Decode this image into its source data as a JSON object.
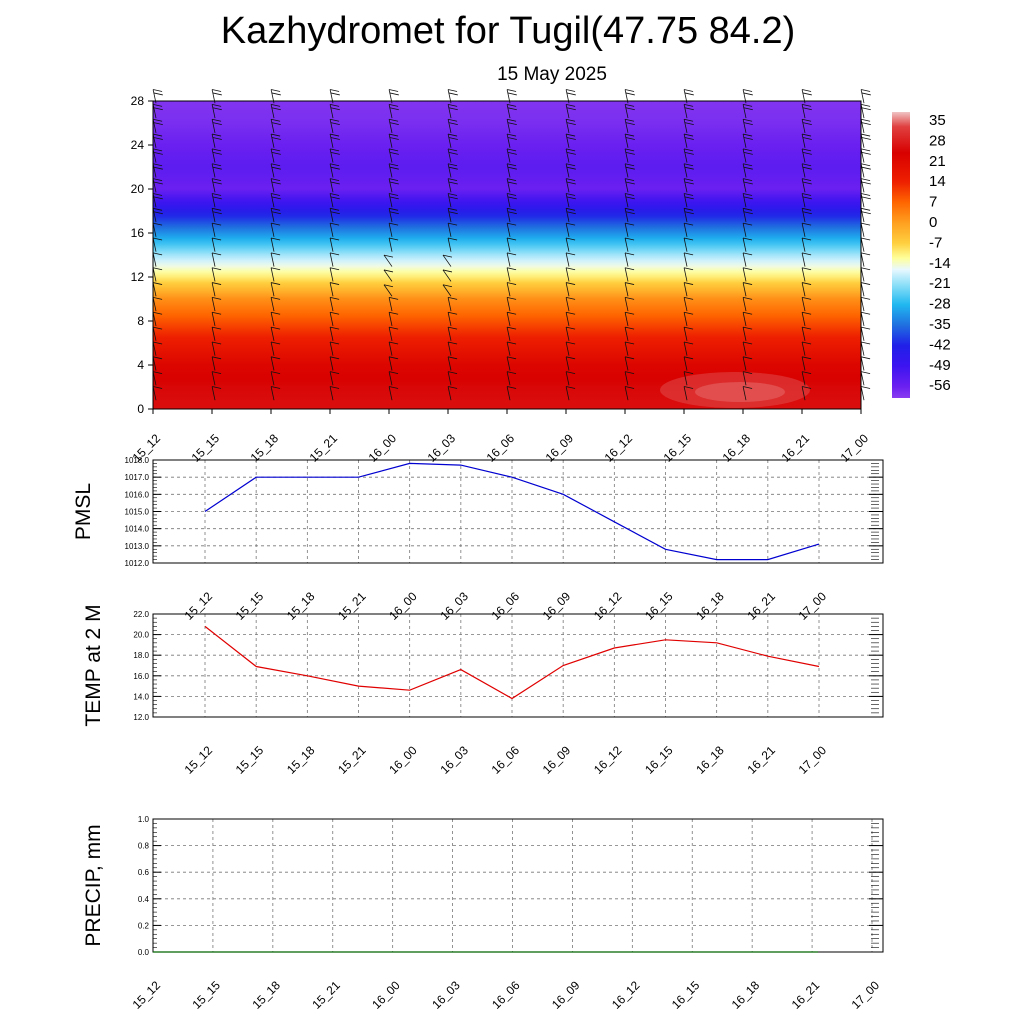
{
  "title": "Kazhydromet for Tugil(47.75 84.2)",
  "subtitle": "15 May 2025",
  "time_labels": [
    "15_12",
    "15_15",
    "15_18",
    "15_21",
    "16_00",
    "16_03",
    "16_06",
    "16_09",
    "16_12",
    "16_15",
    "16_18",
    "16_21",
    "17_00"
  ],
  "chart_data": [
    {
      "type": "heatmap",
      "name": "upper-air temperature cross-section with wind barbs",
      "x": [
        "15_12",
        "15_15",
        "15_18",
        "15_21",
        "16_00",
        "16_03",
        "16_06",
        "16_09",
        "16_12",
        "16_15",
        "16_18",
        "16_21",
        "17_00"
      ],
      "ylim": [
        0,
        28
      ],
      "yticks": [
        0,
        4,
        8,
        12,
        16,
        20,
        24,
        28
      ],
      "colorbar": {
        "labels": [
          35,
          28,
          21,
          14,
          7,
          0,
          -7,
          -14,
          -21,
          -28,
          -35,
          -42,
          -49,
          -56
        ],
        "range": [
          -60,
          38
        ],
        "colors": [
          {
            "v": 38,
            "c": "#f0c4c4"
          },
          {
            "v": 33,
            "c": "#e04040"
          },
          {
            "v": 24,
            "c": "#d80000"
          },
          {
            "v": 14,
            "c": "#ee2000"
          },
          {
            "v": 7,
            "c": "#ff6600"
          },
          {
            "v": 0,
            "c": "#ffa020"
          },
          {
            "v": -7,
            "c": "#ffd040"
          },
          {
            "v": -12,
            "c": "#ffff99"
          },
          {
            "v": -16,
            "c": "#e8f8ff"
          },
          {
            "v": -21,
            "c": "#90e0f8"
          },
          {
            "v": -28,
            "c": "#20b8f0"
          },
          {
            "v": -35,
            "c": "#2070e0"
          },
          {
            "v": -42,
            "c": "#2020e8"
          },
          {
            "v": -49,
            "c": "#3c14f0"
          },
          {
            "v": -56,
            "c": "#6a20f0"
          },
          {
            "v": -60,
            "c": "#8a3cf0"
          }
        ]
      },
      "temperature_profile": [
        {
          "h": 0,
          "t": 26
        },
        {
          "h": 2,
          "t": 25
        },
        {
          "h": 4,
          "t": 22
        },
        {
          "h": 6,
          "t": 16
        },
        {
          "h": 8,
          "t": 9
        },
        {
          "h": 10,
          "t": 2
        },
        {
          "h": 11,
          "t": -4
        },
        {
          "h": 12,
          "t": -10
        },
        {
          "h": 13,
          "t": -15
        },
        {
          "h": 14,
          "t": -20
        },
        {
          "h": 15,
          "t": -26
        },
        {
          "h": 16,
          "t": -32
        },
        {
          "h": 17,
          "t": -38
        },
        {
          "h": 18,
          "t": -44
        },
        {
          "h": 19,
          "t": -50
        },
        {
          "h": 20,
          "t": -56
        },
        {
          "h": 22,
          "t": -54
        },
        {
          "h": 24,
          "t": -56
        },
        {
          "h": 26,
          "t": -58
        },
        {
          "h": 28,
          "t": -59
        }
      ]
    },
    {
      "type": "line",
      "ylabel": "PMSL",
      "ylim": [
        1012.0,
        1018.0
      ],
      "yticks": [
        "1012.0",
        "1013.0",
        "1014.0",
        "1015.0",
        "1016.0",
        "1017.0",
        "1018.0"
      ],
      "color": "#0000d0",
      "x": [
        "15_12",
        "15_15",
        "15_18",
        "15_21",
        "16_00",
        "16_03",
        "16_06",
        "16_09",
        "16_12",
        "16_15",
        "16_18",
        "16_21",
        "17_00"
      ],
      "values": [
        1015.0,
        1017.0,
        1017.0,
        1017.0,
        1017.8,
        1017.7,
        1017.0,
        1016.0,
        1014.4,
        1012.8,
        1012.2,
        1012.2,
        1013.1
      ]
    },
    {
      "type": "line",
      "ylabel": "TEMP at 2 M",
      "ylim": [
        12.0,
        22.0
      ],
      "yticks": [
        "12.0",
        "14.0",
        "16.0",
        "18.0",
        "20.0",
        "22.0"
      ],
      "color": "#e00000",
      "x": [
        "15_12",
        "15_15",
        "15_18",
        "15_21",
        "16_00",
        "16_03",
        "16_06",
        "16_09",
        "16_12",
        "16_15",
        "16_18",
        "16_21",
        "17_00"
      ],
      "values": [
        20.8,
        16.9,
        16.0,
        15.0,
        14.6,
        16.6,
        13.8,
        17.0,
        18.7,
        19.5,
        19.2,
        17.9,
        16.9
      ]
    },
    {
      "type": "line",
      "ylabel": "PRECIP, mm",
      "ylim": [
        0.0,
        1.0
      ],
      "yticks": [
        "0.0",
        "0.2",
        "0.4",
        "0.6",
        "0.8",
        "1.0"
      ],
      "color": "#006400",
      "x": [
        "15_12",
        "15_15",
        "15_18",
        "15_21",
        "16_00",
        "16_03",
        "16_06",
        "16_09",
        "16_12",
        "16_15",
        "16_18",
        "16_21",
        "17_00"
      ],
      "values": [
        0,
        0,
        0,
        0,
        0,
        0,
        0,
        0,
        0,
        0,
        0,
        0,
        0
      ]
    }
  ]
}
